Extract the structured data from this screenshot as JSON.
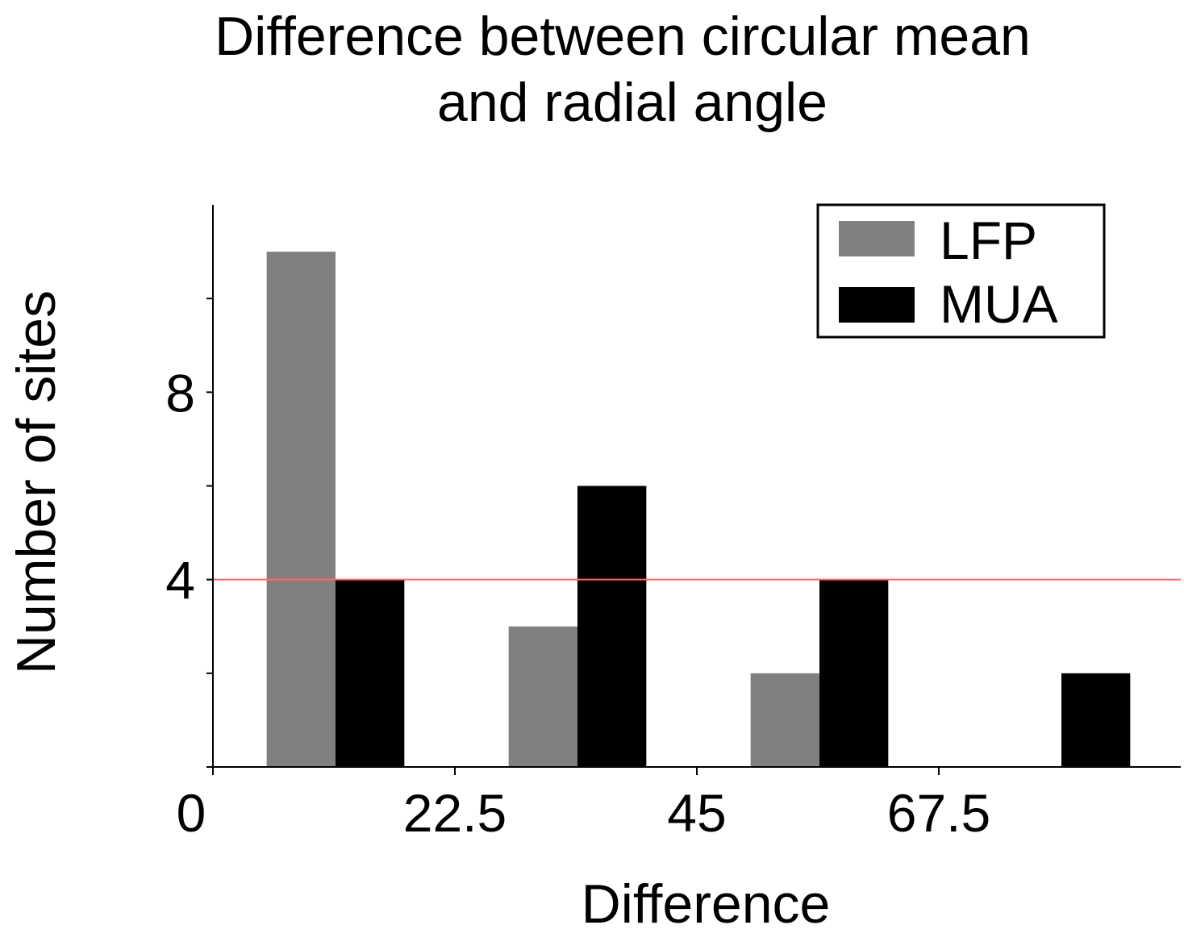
{
  "chart_data": {
    "type": "bar",
    "title": [
      "Difference between circular mean",
      "and radial angle"
    ],
    "xlabel": "Difference",
    "ylabel": "Number of sites",
    "xlim": [
      0,
      90
    ],
    "ylim": [
      0,
      12
    ],
    "x_ticks": [
      0,
      22.5,
      45,
      67.5
    ],
    "x_tick_labels": [
      "0",
      "22.5",
      "45",
      "67.5"
    ],
    "y_ticks": [
      0,
      2,
      4,
      6,
      8,
      10
    ],
    "y_tick_labels": [
      "",
      "",
      "4",
      "",
      "8",
      ""
    ],
    "bin_width": 6.4,
    "bin_starts": [
      5,
      27.5,
      50,
      72.5
    ],
    "series": [
      {
        "name": "LFP",
        "color": "#808080",
        "values": [
          11,
          3,
          2,
          0
        ]
      },
      {
        "name": "MUA",
        "color": "#000000",
        "values": [
          4,
          6,
          4,
          2
        ]
      }
    ],
    "reference_line": {
      "y": 4,
      "color": "#ff6666"
    },
    "legend": {
      "position": "top-right"
    },
    "grid": false
  }
}
